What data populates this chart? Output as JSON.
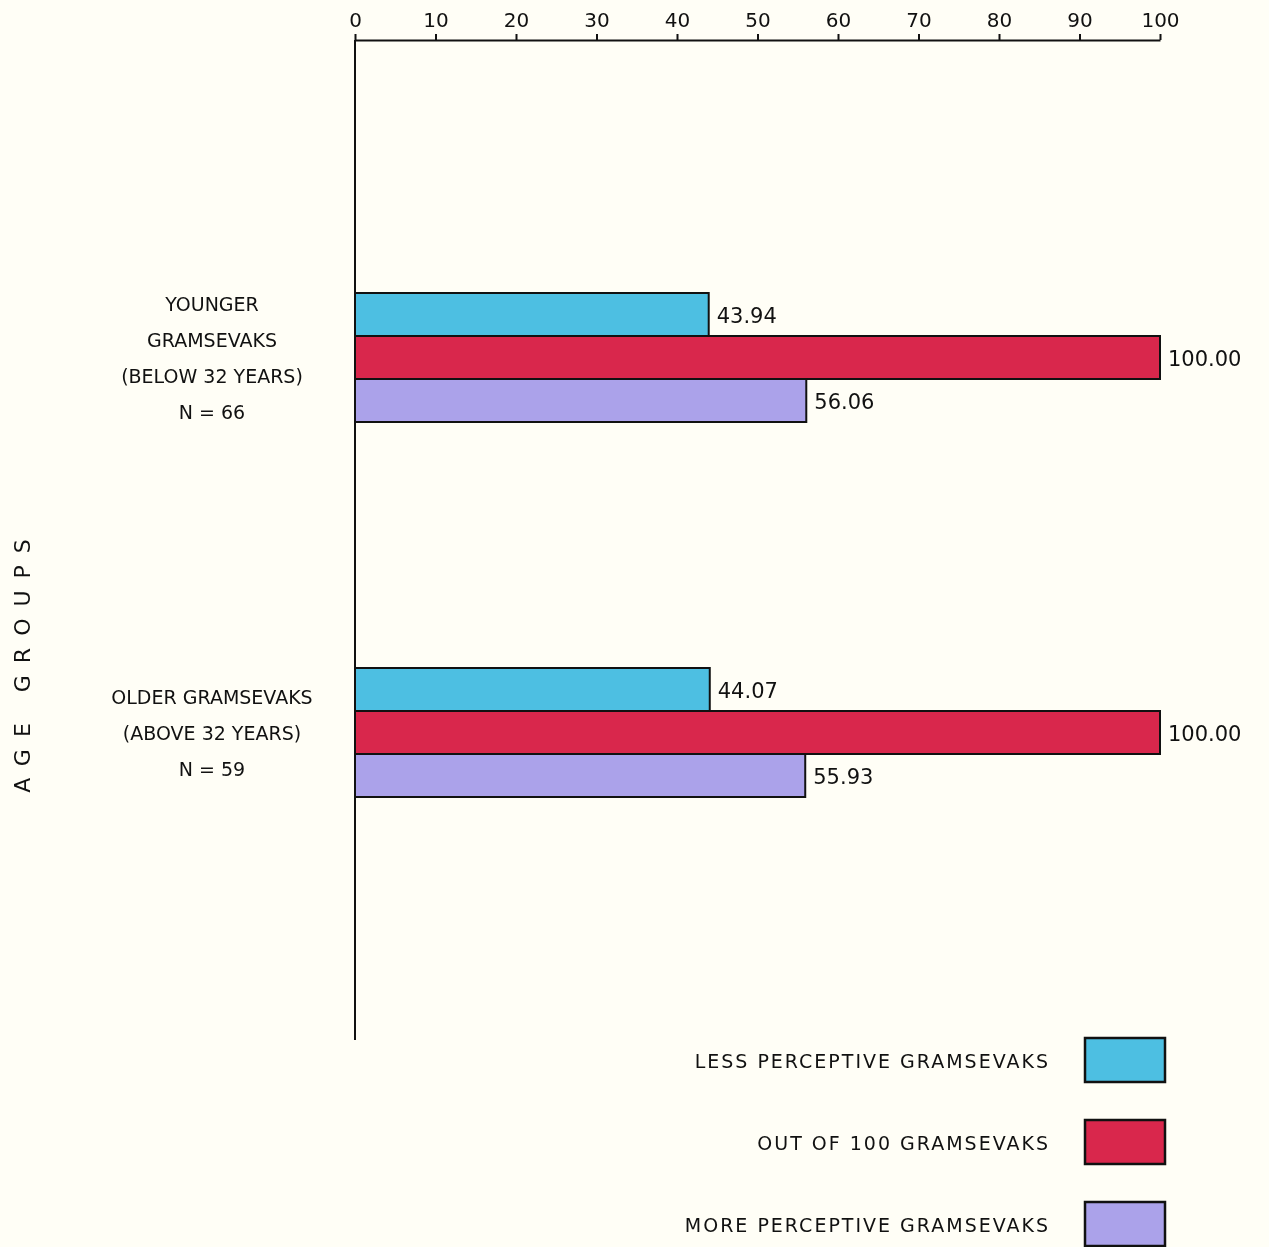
{
  "chart_data": {
    "type": "bar",
    "orientation": "horizontal",
    "ylabel": "AGE GROUPS",
    "categories": [
      "YOUNGER\nGRAMSEVAKS\n(BELOW 32 YEARS)\nN = 66",
      "OLDER GRAMSEVAKS\n(ABOVE 32 YEARS)\nN = 59"
    ],
    "series": [
      {
        "name": "LESS PERCEPTIVE GRAMSEVAKS",
        "color": "#4dbfe2",
        "values": [
          43.94,
          44.07
        ],
        "value_labels": [
          "43.94",
          "44.07"
        ]
      },
      {
        "name": "OUT OF 100 GRAMSEVAKS",
        "color": "#d9274c",
        "values": [
          100.0,
          100.0
        ],
        "value_labels": [
          "100.00",
          "100.00"
        ]
      },
      {
        "name": "MORE PERCEPTIVE GRAMSEVAKS",
        "color": "#aba2ea",
        "values": [
          56.06,
          55.93
        ],
        "value_labels": [
          "56.06",
          "55.93"
        ]
      }
    ],
    "xlim": [
      0,
      100
    ],
    "xticks": [
      0,
      10,
      20,
      30,
      40,
      50,
      60,
      70,
      80,
      90,
      100
    ],
    "legend": "bottom right"
  }
}
